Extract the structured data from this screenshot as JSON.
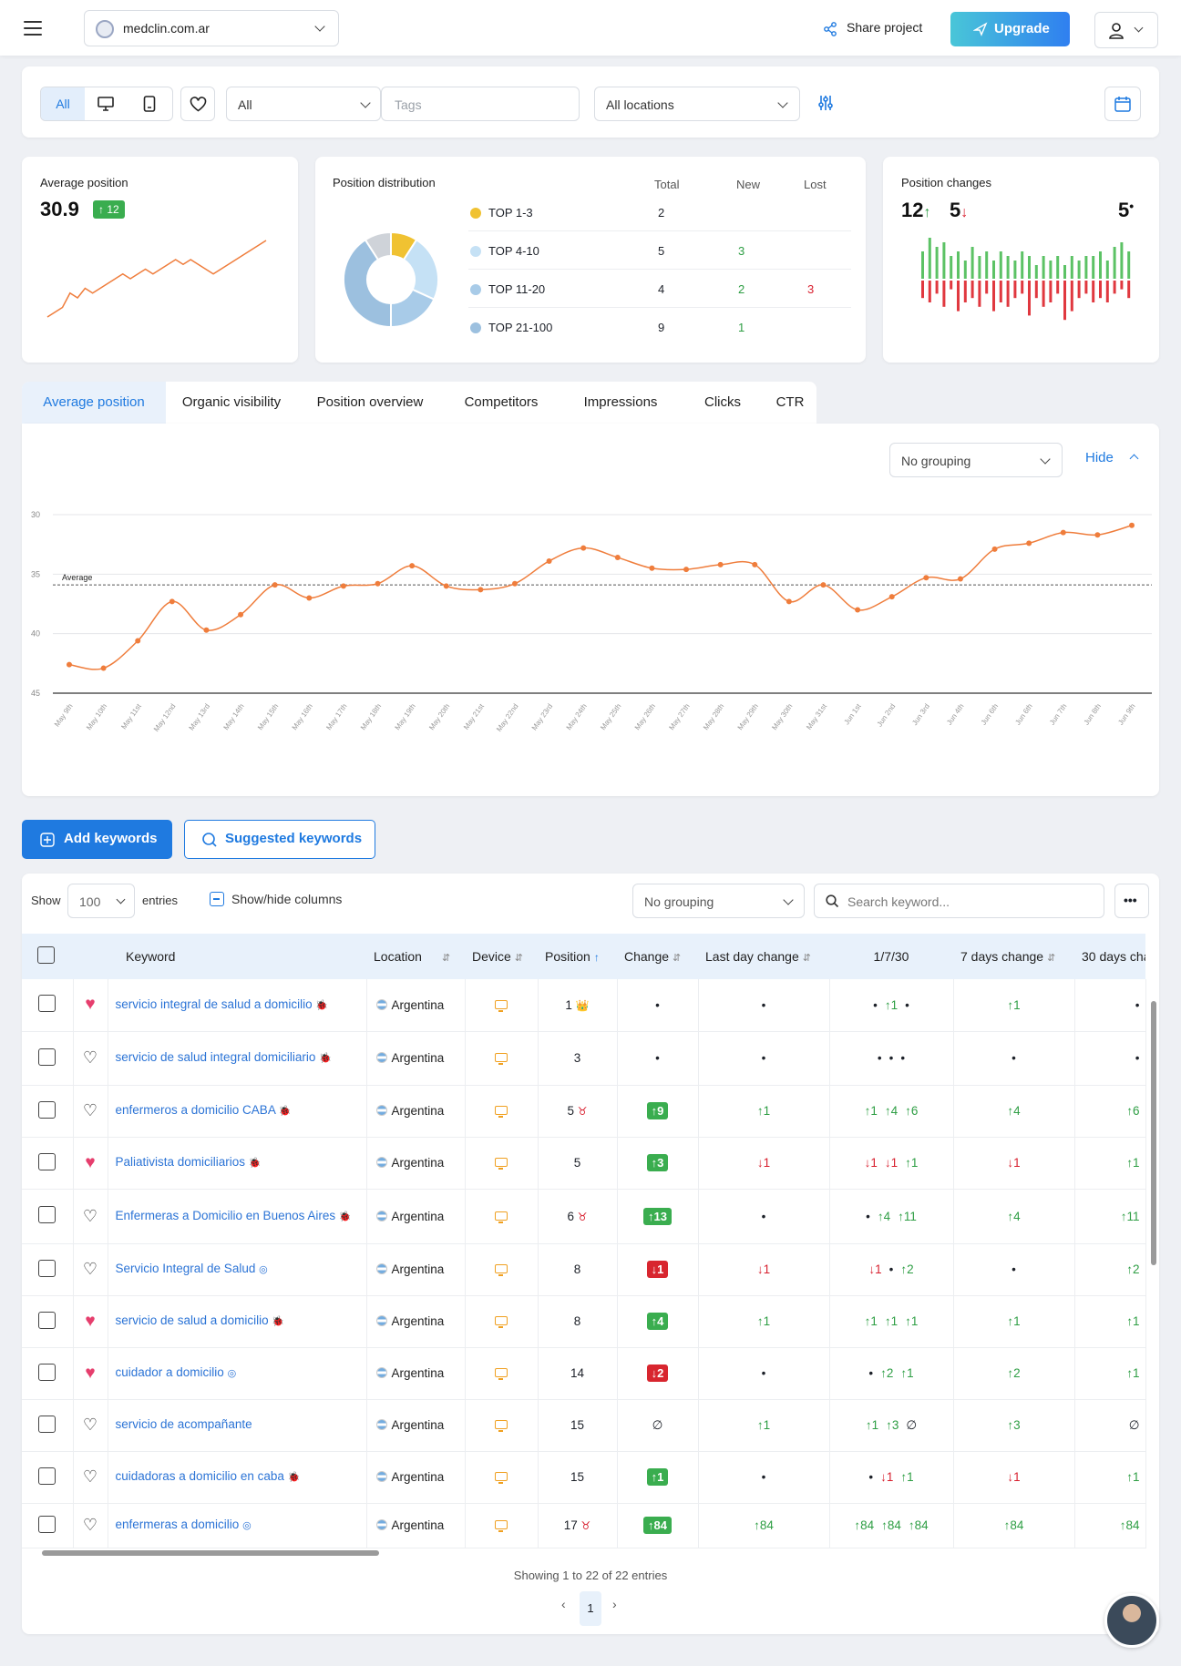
{
  "header": {
    "domain": "medclin.com.ar",
    "share_label": "Share project",
    "upgrade_label": "Upgrade"
  },
  "filters": {
    "device_all": "All",
    "type_select": "All",
    "tags_placeholder": "Tags",
    "locations_select": "All locations"
  },
  "avg_position": {
    "title": "Average position",
    "value": "30.9",
    "badge": "12"
  },
  "distribution": {
    "title": "Position distribution",
    "headers": [
      "Total",
      "New",
      "Lost"
    ],
    "rows": [
      {
        "label": "TOP 1-3",
        "color": "#f0c232",
        "total": "2",
        "new": "",
        "lost": ""
      },
      {
        "label": "TOP 4-10",
        "color": "#c5e1f5",
        "total": "5",
        "new": "3",
        "lost": ""
      },
      {
        "label": "TOP 11-20",
        "color": "#a8cbe8",
        "total": "4",
        "new": "2",
        "lost": "3"
      },
      {
        "label": "TOP 21-100",
        "color": "#9cc0df",
        "total": "9",
        "new": "1",
        "lost": ""
      }
    ],
    "donut": [
      {
        "value": 2,
        "color": "#f0c232"
      },
      {
        "value": 5,
        "color": "#c5e1f5"
      },
      {
        "value": 4,
        "color": "#a8cbe8"
      },
      {
        "value": 9,
        "color": "#9cc0df"
      },
      {
        "value": 2,
        "color": "#cfd3d9"
      }
    ]
  },
  "changes": {
    "title": "Position changes",
    "up": "12",
    "down": "5",
    "same": "5"
  },
  "tabs": [
    "Average position",
    "Organic visibility",
    "Position overview",
    "Competitors",
    "Impressions",
    "Clicks",
    "CTR"
  ],
  "chart_controls": {
    "grouping": "No grouping",
    "hide": "Hide"
  },
  "chart_data": {
    "type": "line",
    "x": [
      "May 9th",
      "May 10th",
      "May 11st",
      "May 12nd",
      "May 13rd",
      "May 14th",
      "May 15th",
      "May 16th",
      "May 17th",
      "May 18th",
      "May 19th",
      "May 20th",
      "May 21st",
      "May 22nd",
      "May 23rd",
      "May 24th",
      "May 25th",
      "May 26th",
      "May 27th",
      "May 28th",
      "May 29th",
      "May 30th",
      "May 31st",
      "Jun 1st",
      "Jun 2nd",
      "Jun 3rd",
      "Jun 4th",
      "Jun 6th",
      "Jun 6th",
      "Jun 7th",
      "Jun 8th",
      "Jun 9th"
    ],
    "values": [
      42.6,
      42.9,
      40.6,
      37.3,
      39.7,
      38.4,
      35.9,
      37.0,
      36.0,
      35.8,
      34.3,
      36.0,
      36.3,
      35.8,
      33.9,
      32.8,
      33.6,
      34.5,
      34.6,
      34.2,
      34.2,
      37.3,
      35.9,
      38.0,
      36.9,
      35.3,
      35.4,
      32.9,
      32.4,
      31.5,
      31.7,
      30.9
    ],
    "y_ticks": [
      "30",
      "35",
      "40",
      "45"
    ],
    "ylim": [
      30,
      45
    ],
    "y_reversed": true,
    "average_label": "Average",
    "average_value": 35.9,
    "color": "#ef7d3c",
    "grid": true
  },
  "sparkline": [
    47,
    46,
    45,
    42,
    43,
    41,
    42,
    41,
    40,
    39,
    38,
    39,
    38,
    37,
    38,
    37,
    36,
    35,
    36,
    35,
    36,
    37,
    38,
    37,
    36,
    35,
    34,
    33,
    32,
    31
  ],
  "bars": [
    {
      "up": 0.6,
      "down": 0.4
    },
    {
      "up": 0.9,
      "down": 0.5
    },
    {
      "up": 0.7,
      "down": 0.3
    },
    {
      "up": 0.8,
      "down": 0.6
    },
    {
      "up": 0.5,
      "down": 0.2
    },
    {
      "up": 0.6,
      "down": 0.7
    },
    {
      "up": 0.4,
      "down": 0.5
    },
    {
      "up": 0.7,
      "down": 0.4
    },
    {
      "up": 0.5,
      "down": 0.6
    },
    {
      "up": 0.6,
      "down": 0.3
    },
    {
      "up": 0.4,
      "down": 0.7
    },
    {
      "up": 0.6,
      "down": 0.5
    },
    {
      "up": 0.5,
      "down": 0.6
    },
    {
      "up": 0.4,
      "down": 0.4
    },
    {
      "up": 0.6,
      "down": 0.3
    },
    {
      "up": 0.5,
      "down": 0.8
    },
    {
      "up": 0.3,
      "down": 0.4
    },
    {
      "up": 0.5,
      "down": 0.6
    },
    {
      "up": 0.4,
      "down": 0.5
    },
    {
      "up": 0.5,
      "down": 0.3
    },
    {
      "up": 0.3,
      "down": 0.9
    },
    {
      "up": 0.5,
      "down": 0.7
    },
    {
      "up": 0.4,
      "down": 0.4
    },
    {
      "up": 0.5,
      "down": 0.3
    },
    {
      "up": 0.5,
      "down": 0.5
    },
    {
      "up": 0.6,
      "down": 0.4
    },
    {
      "up": 0.4,
      "down": 0.5
    },
    {
      "up": 0.7,
      "down": 0.3
    },
    {
      "up": 0.8,
      "down": 0.2
    },
    {
      "up": 0.6,
      "down": 0.4
    }
  ],
  "actions": {
    "add": "Add keywords",
    "suggested": "Suggested keywords"
  },
  "table_controls": {
    "show": "Show",
    "entries_value": "100",
    "entries": "entries",
    "showhide": "Show/hide columns",
    "grouping": "No grouping",
    "search_placeholder": "Search keyword..."
  },
  "table": {
    "headers": [
      "Keyword",
      "Location",
      "Device",
      "Position",
      "Change",
      "Last day change",
      "1/7/30",
      "7 days change",
      "30 days cha"
    ],
    "rows": [
      {
        "fav": true,
        "kw": "servicio integral de salud a domicilio",
        "tag": "🐞",
        "loc": "Argentina",
        "pos": "1",
        "mark": "👑",
        "chg": "•",
        "chgt": "dot",
        "ld": "•",
        "ldt": "dot",
        "t3": [
          [
            "•",
            ""
          ],
          [
            "↑1",
            "g"
          ],
          [
            "•",
            ""
          ]
        ],
        "d7": "↑1",
        "d7t": "g",
        "d30": "•",
        "d30t": ""
      },
      {
        "fav": false,
        "kw": "servicio de salud integral domiciliario",
        "tag": "🐞",
        "loc": "Argentina",
        "pos": "3",
        "mark": "",
        "chg": "•",
        "chgt": "dot",
        "ld": "•",
        "ldt": "dot",
        "t3": [
          [
            "•",
            ""
          ],
          [
            "•",
            ""
          ],
          [
            "•",
            ""
          ]
        ],
        "d7": "•",
        "d7t": "",
        "d30": "•",
        "d30t": ""
      },
      {
        "fav": false,
        "kw": "enfermeros a domicilio CABA",
        "tag": "🐞",
        "loc": "Argentina",
        "pos": "5",
        "mark": "♉",
        "chg": "↑9",
        "chgt": "bg",
        "ld": "↑1",
        "ldt": "g",
        "t3": [
          [
            "↑1",
            "g"
          ],
          [
            "↑4",
            "g"
          ],
          [
            "↑6",
            "g"
          ]
        ],
        "d7": "↑4",
        "d7t": "g",
        "d30": "↑6",
        "d30t": "g"
      },
      {
        "fav": true,
        "kw": "Paliativista domiciliarios",
        "tag": "🐞",
        "loc": "Argentina",
        "pos": "5",
        "mark": "",
        "chg": "↑3",
        "chgt": "bg",
        "ld": "↓1",
        "ldt": "r",
        "t3": [
          [
            "↓1",
            "r"
          ],
          [
            "↓1",
            "r"
          ],
          [
            "↑1",
            "g"
          ]
        ],
        "d7": "↓1",
        "d7t": "r",
        "d30": "↑1",
        "d30t": "g"
      },
      {
        "fav": false,
        "kw": "Enfermeras a Domicilio en Buenos Aires",
        "tag": "🐞",
        "loc": "Argentina",
        "pos": "6",
        "mark": "♉",
        "chg": "↑13",
        "chgt": "bg",
        "ld": "•",
        "ldt": "dot",
        "t3": [
          [
            "•",
            ""
          ],
          [
            "↑4",
            "g"
          ],
          [
            "↑11",
            "g"
          ]
        ],
        "d7": "↑4",
        "d7t": "g",
        "d30": "↑11",
        "d30t": "g"
      },
      {
        "fav": false,
        "kw": "Servicio Integral de Salud",
        "tag": "◎",
        "loc": "Argentina",
        "pos": "8",
        "mark": "",
        "chg": "↓1",
        "chgt": "br",
        "ld": "↓1",
        "ldt": "r",
        "t3": [
          [
            "↓1",
            "r"
          ],
          [
            "•",
            ""
          ],
          [
            "↑2",
            "g"
          ]
        ],
        "d7": "•",
        "d7t": "",
        "d30": "↑2",
        "d30t": "g"
      },
      {
        "fav": true,
        "kw": "servicio de salud a domicilio",
        "tag": "🐞",
        "loc": "Argentina",
        "pos": "8",
        "mark": "",
        "chg": "↑4",
        "chgt": "bg",
        "ld": "↑1",
        "ldt": "g",
        "t3": [
          [
            "↑1",
            "g"
          ],
          [
            "↑1",
            "g"
          ],
          [
            "↑1",
            "g"
          ]
        ],
        "d7": "↑1",
        "d7t": "g",
        "d30": "↑1",
        "d30t": "g"
      },
      {
        "fav": true,
        "kw": "cuidador a domicilio",
        "tag": "◎",
        "loc": "Argentina",
        "pos": "14",
        "mark": "",
        "chg": "↓2",
        "chgt": "br",
        "ld": "•",
        "ldt": "dot",
        "t3": [
          [
            "•",
            ""
          ],
          [
            "↑2",
            "g"
          ],
          [
            "↑1",
            "g"
          ]
        ],
        "d7": "↑2",
        "d7t": "g",
        "d30": "↑1",
        "d30t": "g"
      },
      {
        "fav": false,
        "kw": "servicio de acompañante",
        "tag": "",
        "loc": "Argentina",
        "pos": "15",
        "mark": "",
        "chg": "∅",
        "chgt": "",
        "ld": "↑1",
        "ldt": "g",
        "t3": [
          [
            "↑1",
            "g"
          ],
          [
            "↑3",
            "g"
          ],
          [
            "∅",
            ""
          ]
        ],
        "d7": "↑3",
        "d7t": "g",
        "d30": "∅",
        "d30t": ""
      },
      {
        "fav": false,
        "kw": "cuidadoras a domicilio en caba",
        "tag": "🐞",
        "loc": "Argentina",
        "pos": "15",
        "mark": "",
        "chg": "↑1",
        "chgt": "bg",
        "ld": "•",
        "ldt": "dot",
        "t3": [
          [
            "•",
            ""
          ],
          [
            "↓1",
            "r"
          ],
          [
            "↑1",
            "g"
          ]
        ],
        "d7": "↓1",
        "d7t": "r",
        "d30": "↑1",
        "d30t": "g"
      },
      {
        "fav": false,
        "kw": "enfermeras a domicilio",
        "tag": "◎",
        "loc": "Argentina",
        "pos": "17",
        "mark": "♉",
        "chg": "↑84",
        "chgt": "bg",
        "ld": "↑84",
        "ldt": "g",
        "t3": [
          [
            "↑84",
            "g"
          ],
          [
            "↑84",
            "g"
          ],
          [
            "↑84",
            "g"
          ]
        ],
        "d7": "↑84",
        "d7t": "g",
        "d30": "↑84",
        "d30t": "g"
      }
    ]
  },
  "footer": {
    "showing": "Showing 1 to 22 of 22 entries",
    "page": "1"
  }
}
